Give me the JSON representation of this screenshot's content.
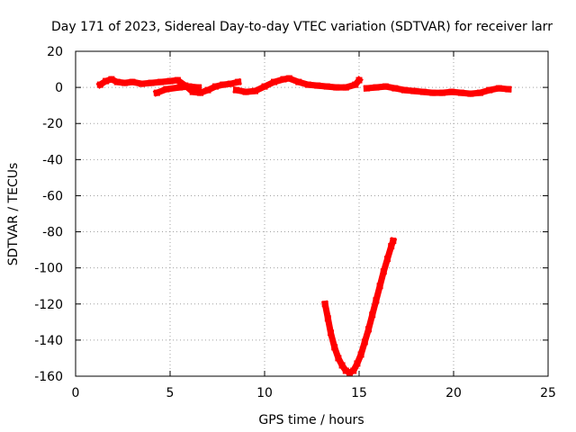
{
  "chart_data": {
    "type": "scatter",
    "title": "Day 171 of 2023, Sidereal Day-to-day VTEC variation (SDTVAR) for receiver larr",
    "xlabel": "GPS time / hours",
    "ylabel": "SDTVAR / TECUs",
    "xlim": [
      0,
      25
    ],
    "ylim": [
      -160,
      20
    ],
    "xticks": [
      0,
      5,
      10,
      15,
      20,
      25
    ],
    "yticks": [
      20,
      0,
      -20,
      -40,
      -60,
      -80,
      -100,
      -120,
      -140,
      -160
    ],
    "grid": true,
    "legend": "none",
    "series_color": "#ff0000",
    "series": [
      {
        "values": [
          [
            1.3,
            1.5
          ],
          [
            1.6,
            3.5
          ],
          [
            1.9,
            4.5
          ],
          [
            2.2,
            3.0
          ],
          [
            2.6,
            2.5
          ],
          [
            3.0,
            3.0
          ],
          [
            3.5,
            2.0
          ],
          [
            4.0,
            2.5
          ],
          [
            4.5,
            3.0
          ],
          [
            5.0,
            3.5
          ],
          [
            5.4,
            4.0
          ],
          [
            5.8,
            1.0
          ],
          [
            6.2,
            -2.5
          ],
          [
            6.6,
            -3.0
          ],
          [
            7.0,
            -1.5
          ],
          [
            7.4,
            0.5
          ],
          [
            7.8,
            1.5
          ],
          [
            8.2,
            2.0
          ],
          [
            8.6,
            3.0
          ],
          [
            4.3,
            -3.0
          ],
          [
            4.8,
            -1.0
          ],
          [
            5.5,
            0.0
          ],
          [
            6.0,
            0.5
          ],
          [
            6.5,
            0.0
          ],
          [
            8.5,
            -1.5
          ],
          [
            9.0,
            -2.5
          ],
          [
            9.5,
            -2.0
          ],
          [
            10.0,
            0.5
          ],
          [
            10.5,
            3.0
          ],
          [
            11.0,
            4.5
          ],
          [
            11.3,
            5.0
          ],
          [
            11.8,
            3.0
          ],
          [
            12.3,
            1.5
          ],
          [
            12.8,
            1.0
          ],
          [
            13.3,
            0.5
          ],
          [
            13.8,
            0.0
          ],
          [
            14.3,
            0.0
          ],
          [
            14.8,
            1.5
          ],
          [
            15.0,
            4.0
          ],
          [
            15.4,
            -0.5
          ],
          [
            15.9,
            0.0
          ],
          [
            16.4,
            0.5
          ],
          [
            16.9,
            -0.5
          ],
          [
            17.4,
            -1.5
          ],
          [
            17.9,
            -2.0
          ],
          [
            18.4,
            -2.5
          ],
          [
            18.9,
            -3.0
          ],
          [
            19.4,
            -3.0
          ],
          [
            19.9,
            -2.5
          ],
          [
            20.4,
            -3.0
          ],
          [
            20.9,
            -3.5
          ],
          [
            21.4,
            -3.0
          ],
          [
            21.9,
            -1.5
          ],
          [
            22.4,
            -0.5
          ],
          [
            22.9,
            -1.0
          ],
          [
            13.2,
            -120
          ],
          [
            13.35,
            -128
          ],
          [
            13.5,
            -136
          ],
          [
            13.7,
            -144
          ],
          [
            13.9,
            -150
          ],
          [
            14.1,
            -154
          ],
          [
            14.3,
            -157
          ],
          [
            14.5,
            -158
          ],
          [
            14.7,
            -157
          ],
          [
            14.9,
            -153
          ],
          [
            15.1,
            -148
          ],
          [
            15.3,
            -141
          ],
          [
            15.5,
            -134
          ],
          [
            15.7,
            -126
          ],
          [
            15.9,
            -118
          ],
          [
            16.1,
            -110
          ],
          [
            16.3,
            -102
          ],
          [
            16.5,
            -95
          ],
          [
            16.7,
            -88
          ],
          [
            16.8,
            -85
          ]
        ]
      }
    ]
  }
}
